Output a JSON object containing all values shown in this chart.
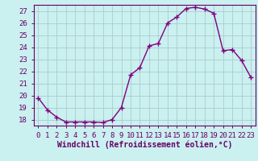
{
  "x": [
    0,
    1,
    2,
    3,
    4,
    5,
    6,
    7,
    8,
    9,
    10,
    11,
    12,
    13,
    14,
    15,
    16,
    17,
    18,
    19,
    20,
    21,
    22,
    23
  ],
  "y": [
    19.8,
    18.8,
    18.2,
    17.8,
    17.8,
    17.8,
    17.8,
    17.75,
    18.0,
    19.0,
    21.7,
    22.3,
    24.1,
    24.3,
    26.0,
    26.5,
    27.2,
    27.3,
    27.15,
    26.8,
    23.7,
    23.8,
    22.9,
    21.5
  ],
  "line_color": "#800080",
  "marker": "+",
  "markersize": 4,
  "linewidth": 1.0,
  "background_color": "#caf0f0",
  "grid_color": "#aacccc",
  "xlabel": "Windchill (Refroidissement éolien,°C)",
  "xlabel_fontsize": 7,
  "xtick_labels": [
    "0",
    "1",
    "2",
    "3",
    "4",
    "5",
    "6",
    "7",
    "8",
    "9",
    "10",
    "11",
    "12",
    "13",
    "14",
    "15",
    "16",
    "17",
    "18",
    "19",
    "20",
    "21",
    "22",
    "23"
  ],
  "ylim": [
    17.5,
    27.5
  ],
  "yticks": [
    18,
    19,
    20,
    21,
    22,
    23,
    24,
    25,
    26,
    27
  ],
  "xlim": [
    -0.5,
    23.5
  ],
  "tick_fontsize": 6.5,
  "tick_color": "#660066",
  "spine_color": "#660066"
}
